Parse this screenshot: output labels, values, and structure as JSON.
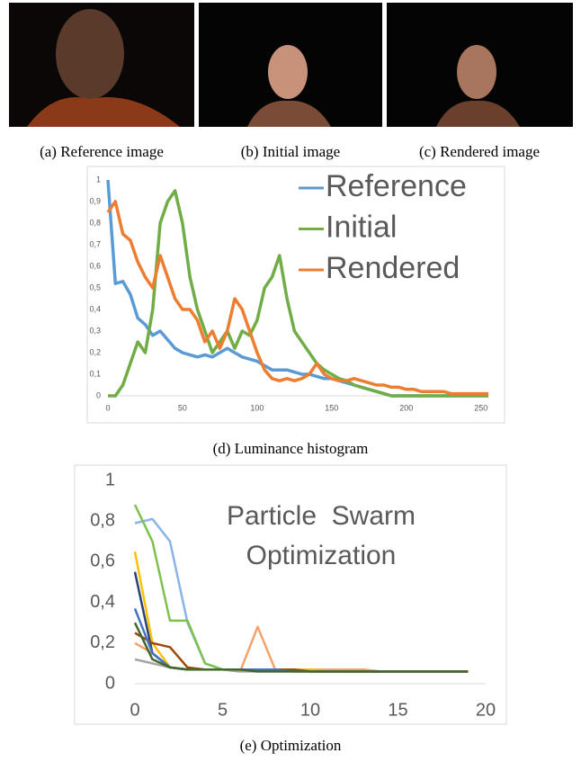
{
  "image_captions": [
    "(a) Reference image",
    "(b) Initial image",
    "(c) Rendered image"
  ],
  "chart_data": [
    {
      "type": "line",
      "caption": "(d) Luminance histogram",
      "x": [
        0,
        5,
        10,
        15,
        20,
        25,
        30,
        35,
        40,
        45,
        50,
        55,
        60,
        65,
        70,
        75,
        80,
        85,
        90,
        95,
        100,
        105,
        110,
        115,
        120,
        125,
        130,
        135,
        140,
        145,
        150,
        155,
        160,
        165,
        170,
        175,
        180,
        185,
        190,
        195,
        200,
        205,
        210,
        215,
        220,
        225,
        230,
        235,
        240,
        245,
        250,
        255
      ],
      "xlim": [
        0,
        255
      ],
      "ylim": [
        0,
        1
      ],
      "xticks": [
        0,
        50,
        100,
        150,
        200,
        250
      ],
      "yticks": [
        0,
        {
          "value": 0.1,
          "label": "0,1"
        },
        {
          "value": 0.2,
          "label": "0,2"
        },
        {
          "value": 0.3,
          "label": "0,3"
        },
        {
          "value": 0.4,
          "label": "0,4"
        },
        {
          "value": 0.5,
          "label": "0,5"
        },
        {
          "value": 0.6,
          "label": "0,6"
        },
        {
          "value": 0.7,
          "label": "0,7"
        },
        {
          "value": 0.8,
          "label": "0,8"
        },
        {
          "value": 0.9,
          "label": "0,9"
        },
        1
      ],
      "legend": "upper right",
      "series": [
        {
          "name": "Reference",
          "color": "#5b9bd5",
          "values": [
            1.0,
            0.52,
            0.53,
            0.47,
            0.36,
            0.33,
            0.28,
            0.3,
            0.26,
            0.22,
            0.2,
            0.19,
            0.18,
            0.19,
            0.18,
            0.2,
            0.22,
            0.2,
            0.18,
            0.17,
            0.16,
            0.14,
            0.12,
            0.12,
            0.12,
            0.11,
            0.1,
            0.1,
            0.09,
            0.08,
            0.08,
            0.07,
            0.06,
            0.05,
            0.04,
            0.03,
            0.02,
            0.01,
            0,
            0,
            0,
            0,
            0,
            0,
            0,
            0,
            0,
            0,
            0,
            0,
            0,
            0
          ]
        },
        {
          "name": "Initial",
          "color": "#70ad47",
          "values": [
            0,
            0,
            0.05,
            0.15,
            0.25,
            0.2,
            0.4,
            0.8,
            0.9,
            0.95,
            0.8,
            0.55,
            0.4,
            0.3,
            0.2,
            0.25,
            0.3,
            0.22,
            0.3,
            0.28,
            0.35,
            0.5,
            0.55,
            0.65,
            0.45,
            0.3,
            0.25,
            0.2,
            0.15,
            0.12,
            0.1,
            0.08,
            0.07,
            0.05,
            0.04,
            0.03,
            0.02,
            0.01,
            0,
            0,
            0,
            0,
            0,
            0,
            0,
            0,
            0,
            0,
            0,
            0,
            0,
            0
          ]
        },
        {
          "name": "Rendered",
          "color": "#ed7d31",
          "values": [
            0.85,
            0.9,
            0.75,
            0.72,
            0.62,
            0.55,
            0.5,
            0.65,
            0.55,
            0.45,
            0.4,
            0.4,
            0.35,
            0.25,
            0.3,
            0.22,
            0.3,
            0.45,
            0.4,
            0.3,
            0.2,
            0.12,
            0.08,
            0.07,
            0.08,
            0.07,
            0.08,
            0.1,
            0.15,
            0.1,
            0.08,
            0.07,
            0.07,
            0.08,
            0.07,
            0.06,
            0.05,
            0.05,
            0.04,
            0.04,
            0.03,
            0.03,
            0.02,
            0.02,
            0.02,
            0.02,
            0.01,
            0.01,
            0.01,
            0.01,
            0.01,
            0.01
          ]
        }
      ]
    },
    {
      "type": "line",
      "caption": "(e) Optimization",
      "annotation": [
        "Particle  Swarm",
        "Optimization"
      ],
      "x": [
        0,
        1,
        2,
        3,
        4,
        5,
        6,
        7,
        8,
        9,
        10,
        11,
        12,
        13,
        14,
        15,
        16,
        17,
        18,
        19
      ],
      "xlim": [
        0,
        20
      ],
      "ylim": [
        0,
        1
      ],
      "xticks": [
        0,
        5,
        10,
        15,
        20
      ],
      "yticks": [
        0,
        {
          "value": 0.2,
          "label": "0,2"
        },
        {
          "value": 0.4,
          "label": "0,4"
        },
        {
          "value": 0.6,
          "label": "0,6"
        },
        {
          "value": 0.8,
          "label": "0,8"
        },
        1
      ],
      "series": [
        {
          "color": "#8ab4e8",
          "values": [
            0.79,
            0.81,
            0.7,
            0.3,
            0.1,
            0.07,
            0.07,
            0.07,
            0.07,
            0.07,
            0.07,
            0.07,
            0.07,
            0.07,
            0.06,
            0.06,
            0.06,
            0.06,
            0.06,
            0.06
          ]
        },
        {
          "color": "#7ec14e",
          "values": [
            0.88,
            0.7,
            0.31,
            0.31,
            0.1,
            0.07,
            0.07,
            0.07,
            0.07,
            0.07,
            0.07,
            0.07,
            0.06,
            0.06,
            0.06,
            0.06,
            0.06,
            0.06,
            0.06,
            0.06
          ]
        },
        {
          "color": "#f4a26a",
          "values": [
            0.2,
            0.15,
            0.08,
            0.07,
            0.07,
            0.07,
            0.06,
            0.28,
            0.07,
            0.07,
            0.07,
            0.07,
            0.07,
            0.07,
            0.06,
            0.06,
            0.06,
            0.06,
            0.06,
            0.06
          ]
        },
        {
          "color": "#ffc000",
          "values": [
            0.65,
            0.2,
            0.08,
            0.07,
            0.07,
            0.07,
            0.07,
            0.07,
            0.07,
            0.07,
            0.07,
            0.06,
            0.06,
            0.06,
            0.06,
            0.06,
            0.06,
            0.06,
            0.06,
            0.06
          ]
        },
        {
          "color": "#264478",
          "values": [
            0.55,
            0.15,
            0.08,
            0.07,
            0.07,
            0.07,
            0.07,
            0.07,
            0.07,
            0.07,
            0.06,
            0.06,
            0.06,
            0.06,
            0.06,
            0.06,
            0.06,
            0.06,
            0.06,
            0.06
          ]
        },
        {
          "color": "#9e480e",
          "values": [
            0.25,
            0.2,
            0.18,
            0.08,
            0.07,
            0.07,
            0.07,
            0.07,
            0.07,
            0.07,
            0.06,
            0.06,
            0.06,
            0.06,
            0.06,
            0.06,
            0.06,
            0.06,
            0.06,
            0.06
          ]
        },
        {
          "color": "#a5a5a5",
          "values": [
            0.12,
            0.1,
            0.08,
            0.07,
            0.07,
            0.07,
            0.06,
            0.06,
            0.06,
            0.06,
            0.06,
            0.06,
            0.06,
            0.06,
            0.06,
            0.06,
            0.06,
            0.06,
            0.06,
            0.06
          ]
        },
        {
          "color": "#4472c4",
          "values": [
            0.37,
            0.15,
            0.08,
            0.07,
            0.07,
            0.07,
            0.07,
            0.07,
            0.07,
            0.06,
            0.06,
            0.06,
            0.06,
            0.06,
            0.06,
            0.06,
            0.06,
            0.06,
            0.06,
            0.06
          ]
        },
        {
          "color": "#43682b",
          "values": [
            0.3,
            0.12,
            0.08,
            0.07,
            0.07,
            0.07,
            0.07,
            0.06,
            0.06,
            0.06,
            0.06,
            0.06,
            0.06,
            0.06,
            0.06,
            0.06,
            0.06,
            0.06,
            0.06,
            0.06
          ]
        }
      ]
    }
  ]
}
